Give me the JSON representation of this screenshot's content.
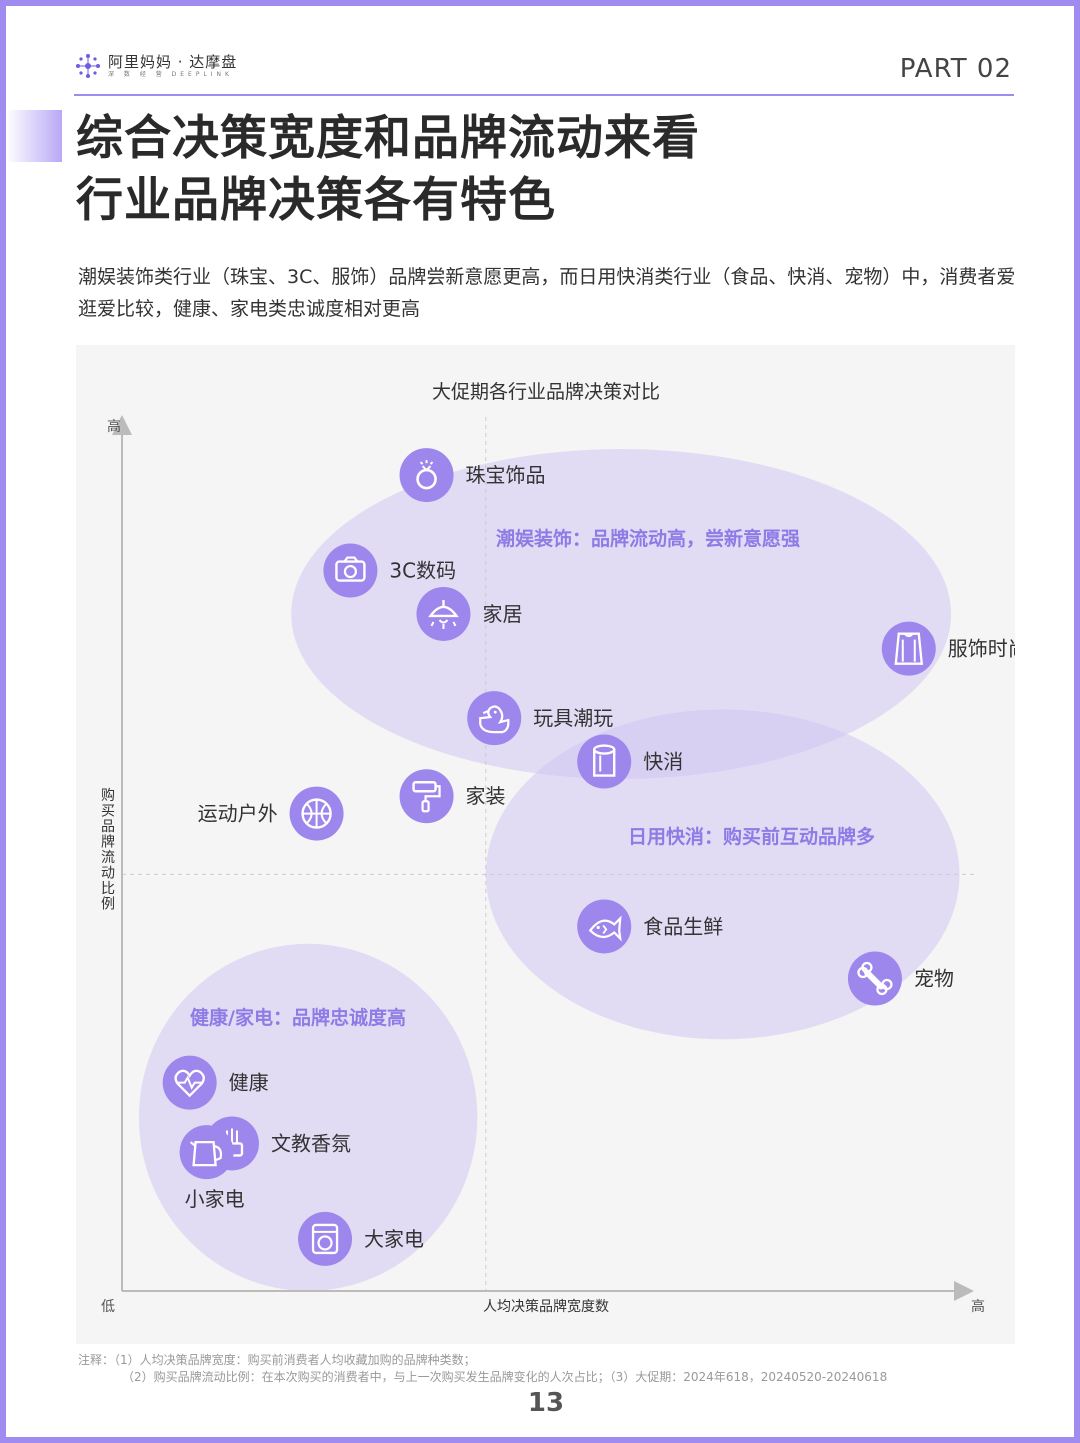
{
  "header": {
    "brand_name": "阿里妈妈 · 达摩盘",
    "brand_sub": "深 数 经 营 DEEPLINK",
    "part": "PART 02"
  },
  "title_lines": [
    "综合决策宽度和品牌流动来看",
    "行业品牌决策各有特色"
  ],
  "subtitle": "潮娱装饰类行业（珠宝、3C、服饰）品牌尝新意愿更高，而日用快消类行业（食品、快消、宠物）中，消费者爱逛爱比较，健康、家电类忠诚度相对更高",
  "notes": {
    "line1": "注释：（1）人均决策品牌宽度：购买前消费者人均收藏加购的品牌种类数；",
    "line2": "（2）购买品牌流动比例：在本次购买的消费者中，与上一次购买发生品牌变化的人次占比；（3）大促期：2024年618，20240520-20240618"
  },
  "page_number": "13",
  "colors": {
    "accent": "#a08cf0",
    "icon_fill": "#9d87ec",
    "cluster_fill": "#cfc6f3",
    "cluster_label": "#8f7be6"
  },
  "chart_data": {
    "type": "scatter",
    "title": "大促期各行业品牌决策对比",
    "xlabel": "人均决策品牌宽度数",
    "ylabel": "购买品牌流动比例",
    "x_low": "低",
    "x_high": "高",
    "y_high": "高",
    "xlim": [
      0,
      100
    ],
    "ylim": [
      0,
      100
    ],
    "midlines": {
      "x": 43,
      "y": 48
    },
    "points": [
      {
        "name": "珠宝饰品",
        "x": 36,
        "y": 94,
        "icon": "ring-icon",
        "label_side": "right"
      },
      {
        "name": "3C数码",
        "x": 27,
        "y": 83,
        "icon": "camera-icon",
        "label_side": "right"
      },
      {
        "name": "家居",
        "x": 38,
        "y": 78,
        "icon": "lamp-icon",
        "label_side": "right"
      },
      {
        "name": "服饰时尚",
        "x": 93,
        "y": 74,
        "icon": "sweater-icon",
        "label_side": "right"
      },
      {
        "name": "玩具潮玩",
        "x": 44,
        "y": 66,
        "icon": "duck-icon",
        "label_side": "right"
      },
      {
        "name": "快消",
        "x": 57,
        "y": 61,
        "icon": "paper-roll-icon",
        "label_side": "right"
      },
      {
        "name": "家装",
        "x": 36,
        "y": 57,
        "icon": "paint-roller-icon",
        "label_side": "right"
      },
      {
        "name": "运动户外",
        "x": 23,
        "y": 55,
        "icon": "basketball-icon",
        "label_side": "left"
      },
      {
        "name": "食品生鲜",
        "x": 57,
        "y": 42,
        "icon": "fish-icon",
        "label_side": "right"
      },
      {
        "name": "宠物",
        "x": 89,
        "y": 36,
        "icon": "bone-icon",
        "label_side": "right"
      },
      {
        "name": "健康",
        "x": 8,
        "y": 24,
        "icon": "heart-icon",
        "label_side": "right"
      },
      {
        "name": "文教香氛",
        "x": 13,
        "y": 17,
        "icon": "incense-icon",
        "label_side": "right"
      },
      {
        "name": "小家电",
        "x": 10,
        "y": 16,
        "icon": "kettle-icon",
        "label_side": "below"
      },
      {
        "name": "大家电",
        "x": 24,
        "y": 6,
        "icon": "washer-icon",
        "label_side": "right"
      }
    ],
    "clusters": [
      {
        "label": "潮娱装饰：品牌流动高，尝新意愿强",
        "cx": 59,
        "cy": 78,
        "rx": 39,
        "ry": 19
      },
      {
        "label": "日用快消：购买前互动品牌多",
        "cx": 71,
        "cy": 48,
        "rx": 28,
        "ry": 19
      },
      {
        "label": "健康/家电：品牌忠诚度高",
        "cx": 22,
        "cy": 20,
        "rx": 20,
        "ry": 20
      }
    ]
  }
}
